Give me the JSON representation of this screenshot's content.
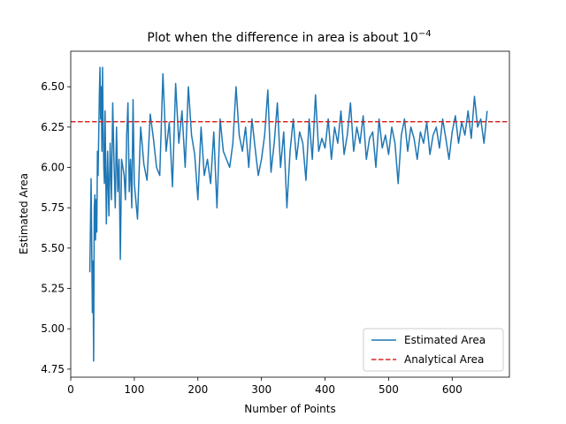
{
  "chart_data": {
    "type": "line",
    "title": "Plot when the difference in area is about 10",
    "title_superscript": "−4",
    "xlabel": "Number of Points",
    "ylabel": "Estimated Area",
    "xlim": [
      0,
      690
    ],
    "ylim": [
      4.7,
      6.72
    ],
    "xticks": [
      0,
      100,
      200,
      300,
      400,
      500,
      600
    ],
    "yticks": [
      4.75,
      5.0,
      5.25,
      5.5,
      5.75,
      6.0,
      6.25,
      6.5
    ],
    "xtick_labels": [
      "0",
      "100",
      "200",
      "300",
      "400",
      "500",
      "600"
    ],
    "ytick_labels": [
      "4.75",
      "5.00",
      "5.25",
      "5.50",
      "5.75",
      "6.00",
      "6.25",
      "6.50"
    ],
    "legend_position": "lower-right",
    "series": [
      {
        "name": "Estimated Area",
        "style": "solid",
        "color": "#1f77b4",
        "x": [
          30,
          32,
          34,
          35,
          36,
          37,
          38,
          39,
          40,
          41,
          42,
          43,
          44,
          45,
          46,
          47,
          48,
          49,
          50,
          51,
          52,
          53,
          54,
          56,
          58,
          60,
          62,
          64,
          66,
          68,
          70,
          72,
          74,
          76,
          78,
          80,
          82,
          84,
          86,
          88,
          90,
          92,
          94,
          96,
          98,
          100,
          105,
          110,
          115,
          120,
          125,
          130,
          135,
          140,
          145,
          150,
          155,
          160,
          165,
          170,
          175,
          180,
          185,
          190,
          195,
          200,
          205,
          210,
          215,
          220,
          225,
          230,
          235,
          240,
          245,
          250,
          255,
          260,
          265,
          270,
          275,
          280,
          285,
          290,
          295,
          300,
          305,
          310,
          315,
          320,
          325,
          330,
          335,
          340,
          345,
          350,
          355,
          360,
          365,
          370,
          375,
          380,
          385,
          390,
          395,
          400,
          405,
          410,
          415,
          420,
          425,
          430,
          435,
          440,
          445,
          450,
          455,
          460,
          465,
          470,
          475,
          480,
          485,
          490,
          495,
          500,
          505,
          510,
          515,
          520,
          525,
          530,
          535,
          540,
          545,
          550,
          555,
          560,
          565,
          570,
          575,
          580,
          585,
          590,
          595,
          600,
          605,
          610,
          615,
          620,
          625,
          630,
          635,
          640,
          645,
          650,
          655
        ],
        "y": [
          5.35,
          5.93,
          5.1,
          5.42,
          4.8,
          5.75,
          5.83,
          5.55,
          5.8,
          5.6,
          6.1,
          5.95,
          6.2,
          6.45,
          6.62,
          6.3,
          6.5,
          6.1,
          6.62,
          6.25,
          6.0,
          5.9,
          6.35,
          5.65,
          6.1,
          5.7,
          6.15,
          5.8,
          6.4,
          6.05,
          5.75,
          6.25,
          5.85,
          6.05,
          5.43,
          6.05,
          6.0,
          5.95,
          5.8,
          6.2,
          6.4,
          5.85,
          6.05,
          5.75,
          6.42,
          5.9,
          5.68,
          6.25,
          6.02,
          5.92,
          6.33,
          6.18,
          6.0,
          5.95,
          6.58,
          6.1,
          6.28,
          5.88,
          6.52,
          6.15,
          6.35,
          6.0,
          6.5,
          6.2,
          6.08,
          5.8,
          6.25,
          5.95,
          6.05,
          5.9,
          6.22,
          5.75,
          6.3,
          6.1,
          6.05,
          6.0,
          6.15,
          6.5,
          6.2,
          6.1,
          6.25,
          6.0,
          6.3,
          6.12,
          5.95,
          6.05,
          6.2,
          6.48,
          5.97,
          6.15,
          6.4,
          6.0,
          6.22,
          5.75,
          6.1,
          6.3,
          6.05,
          6.22,
          6.15,
          5.92,
          6.3,
          6.05,
          6.45,
          6.1,
          6.18,
          6.12,
          6.3,
          6.05,
          6.25,
          6.15,
          6.35,
          6.08,
          6.2,
          6.4,
          6.1,
          6.25,
          6.15,
          6.32,
          6.05,
          6.18,
          6.22,
          6.0,
          6.3,
          6.12,
          6.2,
          6.08,
          6.25,
          6.15,
          5.9,
          6.2,
          6.3,
          6.1,
          6.25,
          6.18,
          6.05,
          6.22,
          6.15,
          6.28,
          6.08,
          6.2,
          6.25,
          6.12,
          6.3,
          6.18,
          6.05,
          6.22,
          6.32,
          6.15,
          6.28,
          6.2,
          6.35,
          6.18,
          6.44,
          6.25,
          6.3,
          6.15,
          6.35
        ]
      },
      {
        "name": "Analytical Area",
        "style": "dashed",
        "color": "#d62728",
        "y_constant": 6.2832
      }
    ]
  }
}
